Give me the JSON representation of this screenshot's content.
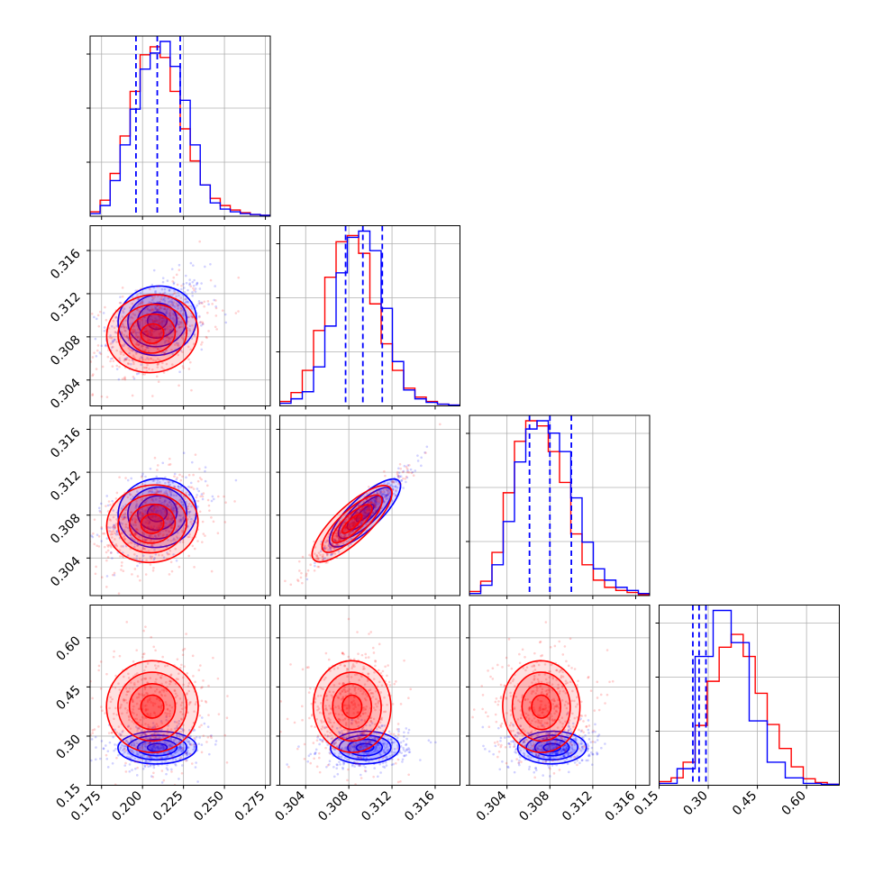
{
  "chart_data": {
    "type": "corner",
    "parameters": [
      {
        "ticks": [
          0.175,
          0.2,
          0.225,
          0.25,
          0.275
        ],
        "tick_labels": [
          "0.175",
          "0.200",
          "0.225",
          "0.250",
          "0.275"
        ],
        "range": [
          0.168,
          0.278
        ],
        "quantiles": [
          0.196,
          0.209,
          0.223
        ]
      },
      {
        "ticks": [
          0.304,
          0.308,
          0.312,
          0.316
        ],
        "tick_labels": [
          "0.304",
          "0.308",
          "0.312",
          "0.316"
        ],
        "range": [
          0.3016,
          0.3183
        ],
        "quantiles": [
          0.3077,
          0.3093,
          0.3111
        ]
      },
      {
        "ticks": [
          0.304,
          0.308,
          0.312,
          0.316
        ],
        "tick_labels": [
          "0.304",
          "0.308",
          "0.312",
          "0.316"
        ],
        "range": [
          0.3005,
          0.3173
        ],
        "quantiles": [
          0.3061,
          0.308,
          0.31
        ]
      },
      {
        "ticks": [
          0.15,
          0.3,
          0.45,
          0.6
        ],
        "tick_labels": [
          "0.15",
          "0.30",
          "0.45",
          "0.60"
        ],
        "range": [
          0.15,
          0.7
        ],
        "quantiles": [
          0.253,
          0.272,
          0.293
        ]
      }
    ],
    "series": [
      {
        "color": "#0000ff",
        "hist_counts": [
          [
            3,
            12,
            40,
            80,
            120,
            165,
            183,
            196,
            168,
            130,
            80,
            35,
            15,
            8,
            5,
            3,
            2,
            1
          ],
          [
            3,
            8,
            16,
            44,
            90,
            150,
            190,
            197,
            175,
            110,
            50,
            18,
            8,
            4,
            2,
            1
          ],
          [
            2,
            10,
            30,
            72,
            130,
            162,
            170,
            158,
            140,
            95,
            52,
            26,
            15,
            8,
            5,
            2
          ],
          [
            2,
            18,
            140,
            190,
            155,
            70,
            25,
            8,
            2,
            1
          ]
        ],
        "means": [
          0.209,
          0.3095,
          0.3082,
          0.265
        ],
        "sigmas": [
          0.012,
          0.0016,
          0.0016,
          0.025
        ]
      },
      {
        "color": "#ff0000",
        "hist_counts": [
          [
            5,
            18,
            48,
            90,
            140,
            181,
            190,
            178,
            140,
            98,
            62,
            35,
            20,
            12,
            7,
            4,
            2,
            1
          ],
          [
            5,
            15,
            40,
            85,
            145,
            185,
            192,
            172,
            115,
            70,
            40,
            20,
            10,
            5,
            2,
            1
          ],
          [
            4,
            14,
            42,
            100,
            150,
            170,
            165,
            140,
            110,
            60,
            30,
            15,
            8,
            5,
            3,
            1
          ],
          [
            4,
            8,
            25,
            65,
            113,
            150,
            164,
            140,
            100,
            66,
            40,
            20,
            7,
            3,
            1
          ]
        ],
        "means": [
          0.206,
          0.3083,
          0.3072,
          0.39
        ],
        "sigmas": [
          0.014,
          0.0018,
          0.0018,
          0.07
        ]
      }
    ],
    "grid": true
  }
}
